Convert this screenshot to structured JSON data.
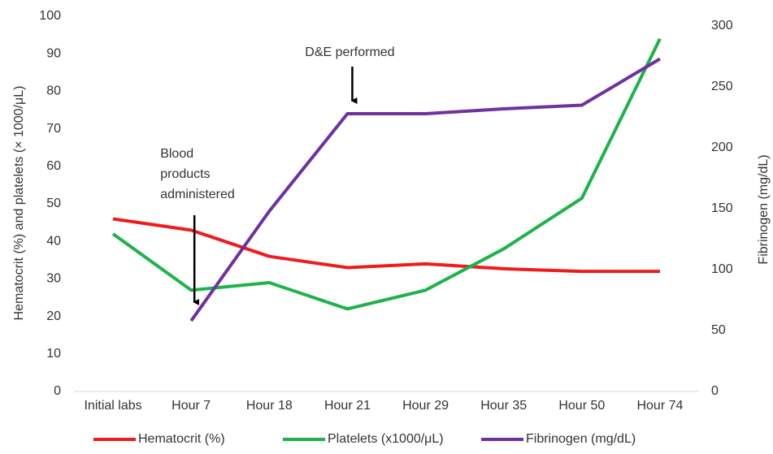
{
  "chart_data": {
    "type": "line",
    "categories": [
      "Initial labs",
      "Hour 7",
      "Hour 18",
      "Hour 21",
      "Hour 29",
      "Hour 35",
      "Hour 50",
      "Hour 74"
    ],
    "series": [
      {
        "name": "Hematocrit (%)",
        "color": "#ee1c1c",
        "values": [
          46,
          43,
          36,
          33,
          34,
          32.7,
          32,
          32
        ]
      },
      {
        "name": "Platelets (x1000/μL)",
        "color": "#1db34a",
        "values": [
          42,
          27,
          29,
          22,
          27,
          38,
          51.5,
          94
        ]
      },
      {
        "name": "Fibrinogen (mg/dL)",
        "color": "#7030a0",
        "axis": "y2",
        "values": [
          null,
          58,
          148,
          228,
          228,
          232,
          235,
          273
        ]
      }
    ],
    "ylabel": "Hematocrit (%) and platelets (× 1000/μL)",
    "y2label": "Fibrinogen (mg/dL)",
    "ylim": [
      0,
      100
    ],
    "yticks": [
      0,
      10,
      20,
      30,
      40,
      50,
      60,
      70,
      80,
      90,
      100
    ],
    "y2lim": [
      0,
      300
    ],
    "y2ticks": [
      0,
      50,
      100,
      150,
      200,
      250,
      300
    ],
    "annotations": [
      {
        "lines": [
          "D&E performed"
        ],
        "category": 3
      },
      {
        "lines": [
          "Blood",
          "products",
          "administered"
        ],
        "category": 1
      }
    ],
    "legend": "bottom"
  }
}
